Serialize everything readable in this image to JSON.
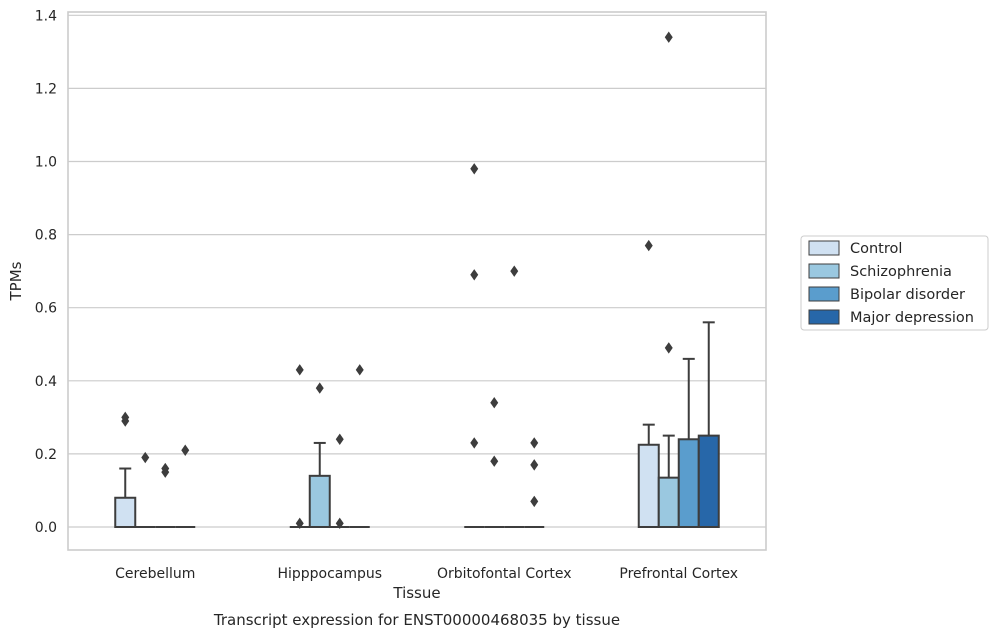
{
  "chart_data": {
    "type": "box",
    "caption": "Transcript expression for ENST00000468035 by tissue",
    "xlabel": "Tissue",
    "ylabel": "TPMs",
    "ylim": [
      -0.06,
      1.41
    ],
    "yticks": [
      0.0,
      0.2,
      0.4,
      0.6,
      0.8,
      1.0,
      1.2,
      1.4
    ],
    "ytick_labels": [
      "0.0",
      "0.2",
      "0.4",
      "0.6",
      "0.8",
      "1.0",
      "1.2",
      "1.4"
    ],
    "grid": "horizontal",
    "legend_position": "right",
    "categories": [
      "Cerebellum",
      "Hipppocampus",
      "Orbitofontal Cortex",
      "Prefrontal Cortex"
    ],
    "series": [
      {
        "name": "Control",
        "color": "#d0e1f2",
        "boxes": [
          {
            "q1": 0.0,
            "median": 0.0,
            "q3": 0.08,
            "whisker_low": 0.0,
            "whisker_high": 0.16,
            "outliers": [
              0.29,
              0.3
            ]
          },
          {
            "q1": 0.0,
            "median": 0.0,
            "q3": 0.0,
            "whisker_low": 0.0,
            "whisker_high": 0.0,
            "outliers": [
              0.01,
              0.43
            ]
          },
          {
            "q1": 0.0,
            "median": 0.0,
            "q3": 0.0,
            "whisker_low": 0.0,
            "whisker_high": 0.0,
            "outliers": [
              0.23,
              0.69,
              0.98
            ]
          },
          {
            "q1": 0.0,
            "median": 0.0,
            "q3": 0.225,
            "whisker_low": 0.0,
            "whisker_high": 0.28,
            "outliers": [
              0.77
            ]
          }
        ]
      },
      {
        "name": "Schizophrenia",
        "color": "#9ac8e0",
        "boxes": [
          {
            "q1": 0.0,
            "median": 0.0,
            "q3": 0.0,
            "whisker_low": 0.0,
            "whisker_high": 0.0,
            "outliers": [
              0.19
            ]
          },
          {
            "q1": 0.0,
            "median": 0.0,
            "q3": 0.14,
            "whisker_low": 0.0,
            "whisker_high": 0.23,
            "outliers": [
              0.38
            ]
          },
          {
            "q1": 0.0,
            "median": 0.0,
            "q3": 0.0,
            "whisker_low": 0.0,
            "whisker_high": 0.0,
            "outliers": [
              0.18,
              0.34
            ]
          },
          {
            "q1": 0.0,
            "median": 0.0,
            "q3": 0.135,
            "whisker_low": 0.0,
            "whisker_high": 0.25,
            "outliers": [
              0.49,
              1.34
            ]
          }
        ]
      },
      {
        "name": "Bipolar disorder",
        "color": "#5a9dcd",
        "boxes": [
          {
            "q1": 0.0,
            "median": 0.0,
            "q3": 0.0,
            "whisker_low": 0.0,
            "whisker_high": 0.0,
            "outliers": [
              0.15,
              0.16
            ]
          },
          {
            "q1": 0.0,
            "median": 0.0,
            "q3": 0.0,
            "whisker_low": 0.0,
            "whisker_high": 0.0,
            "outliers": [
              0.01,
              0.24
            ]
          },
          {
            "q1": 0.0,
            "median": 0.0,
            "q3": 0.0,
            "whisker_low": 0.0,
            "whisker_high": 0.0,
            "outliers": [
              0.7
            ]
          },
          {
            "q1": 0.0,
            "median": 0.0,
            "q3": 0.24,
            "whisker_low": 0.0,
            "whisker_high": 0.46,
            "outliers": []
          }
        ]
      },
      {
        "name": "Major depression",
        "color": "#2767a9",
        "boxes": [
          {
            "q1": 0.0,
            "median": 0.0,
            "q3": 0.0,
            "whisker_low": 0.0,
            "whisker_high": 0.0,
            "outliers": [
              0.21
            ]
          },
          {
            "q1": 0.0,
            "median": 0.0,
            "q3": 0.0,
            "whisker_low": 0.0,
            "whisker_high": 0.0,
            "outliers": [
              0.43
            ]
          },
          {
            "q1": 0.0,
            "median": 0.0,
            "q3": 0.0,
            "whisker_low": 0.0,
            "whisker_high": 0.0,
            "outliers": [
              0.07,
              0.17,
              0.23
            ]
          },
          {
            "q1": 0.0,
            "median": 0.0,
            "q3": 0.25,
            "whisker_low": 0.0,
            "whisker_high": 0.56,
            "outliers": []
          }
        ]
      }
    ]
  }
}
